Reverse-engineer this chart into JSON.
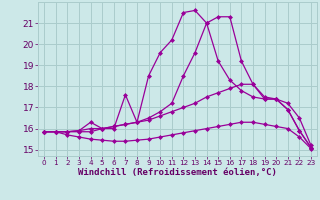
{
  "xlabel": "Windchill (Refroidissement éolien,°C)",
  "background_color": "#cce8e8",
  "grid_color": "#aacccc",
  "line_color": "#990099",
  "text_color": "#660066",
  "xlim": [
    -0.5,
    23.5
  ],
  "ylim": [
    14.7,
    22.0
  ],
  "xticks": [
    0,
    1,
    2,
    3,
    4,
    5,
    6,
    7,
    8,
    9,
    10,
    11,
    12,
    13,
    14,
    15,
    16,
    17,
    18,
    19,
    20,
    21,
    22,
    23
  ],
  "yticks": [
    15,
    16,
    17,
    18,
    19,
    20,
    21
  ],
  "series": [
    {
      "x": [
        0,
        1,
        2,
        3,
        4,
        5,
        6,
        7,
        8,
        9,
        10,
        11,
        12,
        13,
        14,
        15,
        16,
        17,
        18,
        19,
        20,
        21,
        22,
        23
      ],
      "y": [
        15.85,
        15.85,
        15.85,
        15.85,
        15.85,
        16.0,
        16.1,
        16.2,
        16.3,
        16.4,
        16.6,
        16.8,
        17.0,
        17.2,
        17.5,
        17.7,
        17.9,
        18.1,
        18.1,
        17.4,
        17.4,
        16.9,
        15.9,
        15.1
      ]
    },
    {
      "x": [
        0,
        1,
        2,
        3,
        4,
        5,
        6,
        7,
        8,
        9,
        10,
        11,
        12,
        13,
        14,
        15,
        16,
        17,
        18,
        19,
        20,
        21,
        22,
        23
      ],
      "y": [
        15.85,
        15.85,
        15.85,
        15.9,
        16.0,
        16.0,
        16.1,
        16.2,
        16.3,
        16.5,
        16.8,
        17.2,
        18.5,
        19.6,
        21.0,
        21.3,
        21.3,
        19.2,
        18.1,
        17.5,
        17.4,
        17.2,
        16.5,
        15.2
      ]
    },
    {
      "x": [
        0,
        1,
        2,
        3,
        4,
        5,
        6,
        7,
        8,
        9,
        10,
        11,
        12,
        13,
        14,
        15,
        16,
        17,
        18,
        19,
        20,
        21,
        22,
        23
      ],
      "y": [
        15.85,
        15.85,
        15.85,
        15.9,
        16.3,
        16.0,
        16.0,
        17.6,
        16.3,
        18.5,
        19.6,
        20.2,
        21.5,
        21.6,
        21.0,
        19.2,
        18.3,
        17.8,
        17.5,
        17.4,
        17.4,
        16.9,
        15.9,
        15.1
      ]
    },
    {
      "x": [
        0,
        1,
        2,
        3,
        4,
        5,
        6,
        7,
        8,
        9,
        10,
        11,
        12,
        13,
        14,
        15,
        16,
        17,
        18,
        19,
        20,
        21,
        22,
        23
      ],
      "y": [
        15.85,
        15.85,
        15.7,
        15.6,
        15.5,
        15.45,
        15.4,
        15.4,
        15.45,
        15.5,
        15.6,
        15.7,
        15.8,
        15.9,
        16.0,
        16.1,
        16.2,
        16.3,
        16.3,
        16.2,
        16.1,
        16.0,
        15.6,
        15.05
      ]
    }
  ]
}
